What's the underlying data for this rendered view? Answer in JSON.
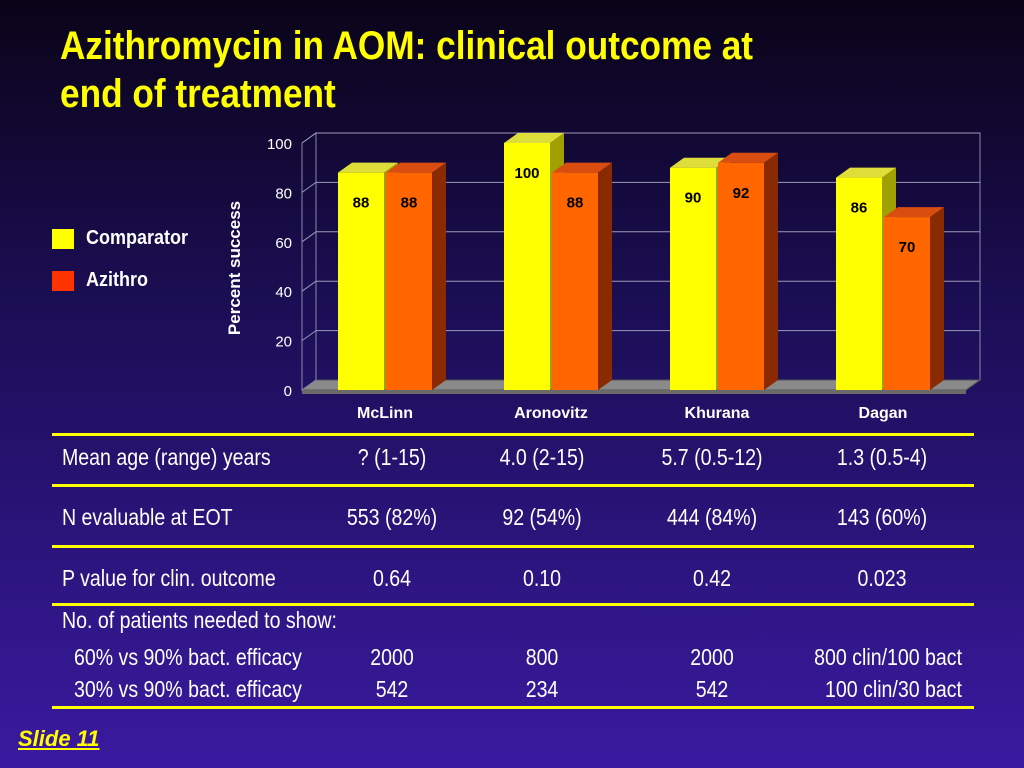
{
  "title_line1": "Azithromycin in AOM: clinical outcome at",
  "title_line2": "end of treatment",
  "legend": [
    {
      "label": "Comparator",
      "color": "#ffff00"
    },
    {
      "label": "Azithro",
      "color": "#ff3300"
    }
  ],
  "chart_data": {
    "type": "bar",
    "categories": [
      "McLinn",
      "Aronovitz",
      "Khurana",
      "Dagan"
    ],
    "series": [
      {
        "name": "Comparator",
        "values": [
          88,
          100,
          90,
          86
        ],
        "color": "#ffff00"
      },
      {
        "name": "Azithro",
        "values": [
          88,
          88,
          92,
          70
        ],
        "color": "#ff6600"
      }
    ],
    "ylabel": "Percent success",
    "xlabel": "",
    "ylim": [
      0,
      100
    ],
    "yticks": [
      0,
      20,
      40,
      60,
      80,
      100
    ],
    "grid": true,
    "legend_position": "left",
    "three_d": true
  },
  "table": {
    "rows": [
      {
        "label": "Mean age (range) years",
        "values": [
          "? (1-15)",
          "4.0 (2-15)",
          "5.7 (0.5-12)",
          "1.3 (0.5-4)"
        ]
      },
      {
        "label": "N evaluable at EOT",
        "values": [
          "553 (82%)",
          "92 (54%)",
          "444 (84%)",
          "143 (60%)"
        ]
      },
      {
        "label": "P value for clin. outcome",
        "values": [
          "0.64",
          "0.10",
          "0.42",
          "0.023"
        ]
      }
    ],
    "section_label": "No. of patients needed to show:",
    "sub_rows": [
      {
        "label": "60% vs 90% bact. efficacy",
        "values": [
          "2000",
          "800",
          "2000",
          "800 clin/100 bact"
        ]
      },
      {
        "label": "30% vs 90% bact. efficacy",
        "values": [
          "542",
          "234",
          "542",
          "100 clin/30 bact"
        ]
      }
    ]
  },
  "footer": "Slide  11"
}
